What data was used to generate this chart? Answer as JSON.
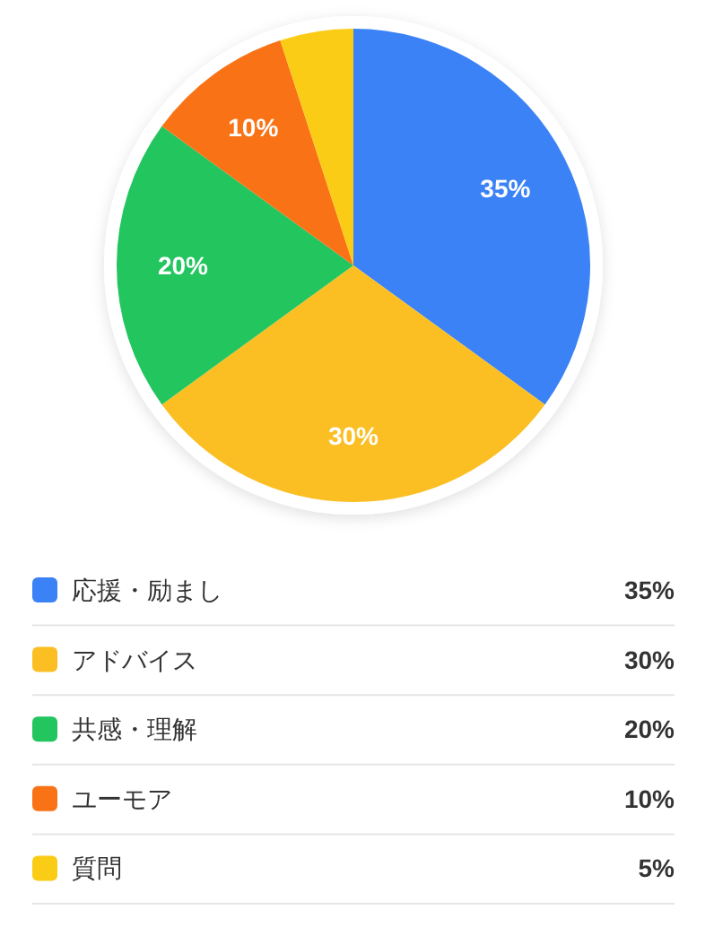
{
  "chart_data": {
    "type": "pie",
    "categories": [
      "応援・励まし",
      "アドバイス",
      "共感・理解",
      "ユーモア",
      "質問"
    ],
    "values": [
      35,
      30,
      20,
      10,
      5
    ],
    "colors": [
      "#3b82f6",
      "#fbbf24",
      "#22c55e",
      "#f97316",
      "#facc15"
    ],
    "value_labels": [
      "35%",
      "30%",
      "20%",
      "10%",
      "5%"
    ],
    "legend": "bottom"
  }
}
